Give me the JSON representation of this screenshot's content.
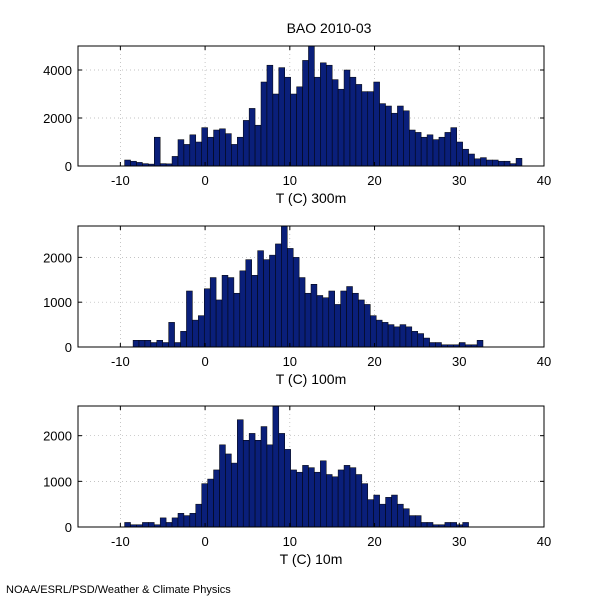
{
  "title": "BAO 2010-03",
  "footer": "NOAA/ESRL/PSD/Weather & Climate Physics",
  "colors": {
    "bar_fill": "#0a1f7a",
    "bar_edge": "#000000",
    "grid": "#b0b0b0",
    "axis": "#000000"
  },
  "chart_data": [
    {
      "type": "bar",
      "xlabel": "T (C) 300m",
      "xlim": [
        -15,
        40
      ],
      "ylim": [
        0,
        5000
      ],
      "xticks": [
        -10,
        0,
        10,
        20,
        30,
        40
      ],
      "xtick_labels": [
        "-10",
        "0",
        "10",
        "20",
        "30",
        "40"
      ],
      "yticks": [
        0,
        2000,
        4000
      ],
      "ytick_labels": [
        "0",
        "2000",
        "4000"
      ],
      "grid": true,
      "bin_start": -9.5,
      "bin_width": 0.7,
      "values": [
        250,
        200,
        150,
        100,
        80,
        1200,
        100,
        90,
        400,
        1100,
        900,
        1300,
        1000,
        1600,
        1200,
        1500,
        1550,
        1350,
        900,
        1200,
        1900,
        2400,
        1700,
        3500,
        4200,
        3000,
        4100,
        3700,
        3000,
        3300,
        4400,
        5000,
        3700,
        4300,
        4200,
        3600,
        3200,
        4000,
        3700,
        3400,
        3100,
        3100,
        3500,
        2600,
        2500,
        2200,
        2500,
        2300,
        1500,
        1400,
        1200,
        1300,
        1100,
        1200,
        1400,
        1600,
        1000,
        700,
        500,
        300,
        350,
        250,
        250,
        200,
        200,
        100,
        320
      ]
    },
    {
      "type": "bar",
      "xlabel": "T (C) 100m",
      "xlim": [
        -15,
        40
      ],
      "ylim": [
        0,
        2700
      ],
      "xticks": [
        -10,
        0,
        10,
        20,
        30,
        40
      ],
      "xtick_labels": [
        "-10",
        "0",
        "10",
        "20",
        "30",
        "40"
      ],
      "yticks": [
        0,
        1000,
        2000
      ],
      "ytick_labels": [
        "0",
        "1000",
        "2000"
      ],
      "grid": true,
      "bin_start": -8.5,
      "bin_width": 0.7,
      "values": [
        150,
        150,
        150,
        100,
        150,
        100,
        550,
        100,
        350,
        1250,
        600,
        700,
        1300,
        1550,
        1050,
        1600,
        1550,
        1200,
        1700,
        1950,
        1600,
        2150,
        1950,
        2050,
        2300,
        2700,
        2200,
        2000,
        1550,
        1200,
        1400,
        1150,
        1100,
        1250,
        950,
        1250,
        1350,
        1200,
        1050,
        950,
        700,
        600,
        550,
        500,
        450,
        500,
        450,
        350,
        300,
        200,
        100,
        100,
        50,
        50,
        50,
        100,
        50,
        50,
        150
      ]
    },
    {
      "type": "bar",
      "xlabel": "T (C) 10m",
      "xlim": [
        -15,
        40
      ],
      "ylim": [
        0,
        2650
      ],
      "xticks": [
        -10,
        0,
        10,
        20,
        30,
        40
      ],
      "xtick_labels": [
        "-10",
        "0",
        "10",
        "20",
        "30",
        "40"
      ],
      "yticks": [
        0,
        1000,
        2000
      ],
      "ytick_labels": [
        "0",
        "1000",
        "2000"
      ],
      "grid": true,
      "bin_start": -9.5,
      "bin_width": 0.7,
      "values": [
        100,
        50,
        50,
        100,
        100,
        50,
        200,
        100,
        200,
        300,
        250,
        300,
        500,
        950,
        1050,
        1250,
        1800,
        1600,
        1400,
        2350,
        1900,
        2050,
        1900,
        2200,
        1800,
        2650,
        2050,
        1700,
        1250,
        1200,
        1350,
        1300,
        1200,
        1450,
        1150,
        1100,
        1250,
        1350,
        1300,
        1150,
        950,
        600,
        700,
        500,
        650,
        700,
        500,
        400,
        250,
        250,
        100,
        100,
        50,
        50,
        100,
        100,
        50,
        100
      ]
    }
  ]
}
